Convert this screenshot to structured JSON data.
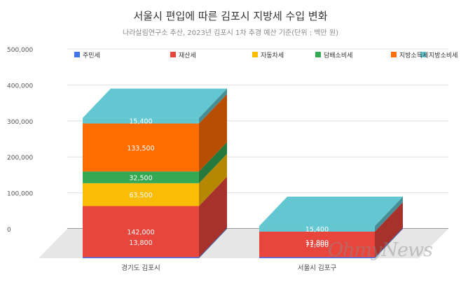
{
  "chart_data": {
    "type": "bar",
    "stacked": true,
    "title": "서울시 편입에 따른 김포시 지방세 수입 변화",
    "subtitle": "나라살림연구소 추산, 2023년 김포시 1차 추경 예산 기준(단위 : 백만 원)",
    "categories": [
      "경기도 김포시",
      "서울시 김포구"
    ],
    "ylim": [
      0,
      500000
    ],
    "yticks": [
      "500,000",
      "400,000",
      "300,000",
      "200,000",
      "100,000",
      "0"
    ],
    "legend_position": "top",
    "series": [
      {
        "name": "주민세",
        "color": "#4472e8",
        "values": [
          3000,
          3000
        ],
        "labels": [
          "",
          ""
        ]
      },
      {
        "name": "재산세",
        "color": "#e8453c",
        "values": [
          142000,
          71000
        ],
        "labels": [
          "142,000",
          "71,000"
        ]
      },
      {
        "name": "자동차세",
        "color": "#fbbc04",
        "values": [
          63500,
          0
        ],
        "labels": [
          "63,500",
          ""
        ]
      },
      {
        "name": "담배소비세",
        "color": "#34a853",
        "values": [
          32500,
          0
        ],
        "labels": [
          "32,500",
          ""
        ]
      },
      {
        "name": "지방소득세",
        "color": "#ff6d01",
        "values": [
          133500,
          0
        ],
        "labels": [
          "133,500",
          ""
        ]
      },
      {
        "name": "지방소비세",
        "color": "#63c7d1",
        "values": [
          15400,
          15400
        ],
        "labels": [
          "15,400",
          "15,400"
        ]
      }
    ],
    "extra_labels": [
      {
        "category": 0,
        "text": "13,800"
      },
      {
        "category": 1,
        "text": "13,800"
      }
    ]
  },
  "watermark": "OhmyNews"
}
